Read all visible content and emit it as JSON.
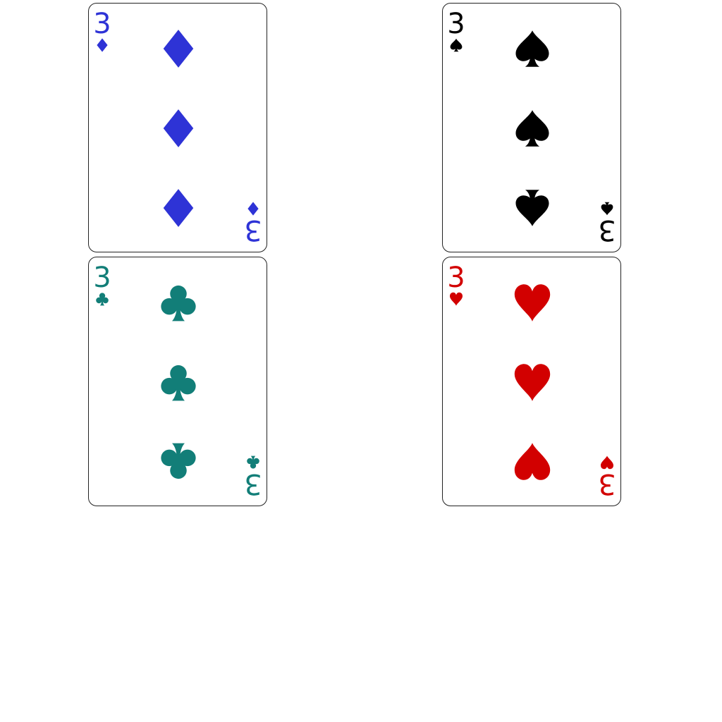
{
  "cards": [
    {
      "rank": "3",
      "suit": "diamonds",
      "suit_icon": "diamond-icon",
      "color": "#2e33d6"
    },
    {
      "rank": "3",
      "suit": "spades",
      "suit_icon": "spade-icon",
      "color": "#000000"
    },
    {
      "rank": "3",
      "suit": "clubs",
      "suit_icon": "club-icon",
      "color": "#127e78"
    },
    {
      "rank": "3",
      "suit": "hearts",
      "suit_icon": "heart-icon",
      "color": "#d20000"
    }
  ]
}
